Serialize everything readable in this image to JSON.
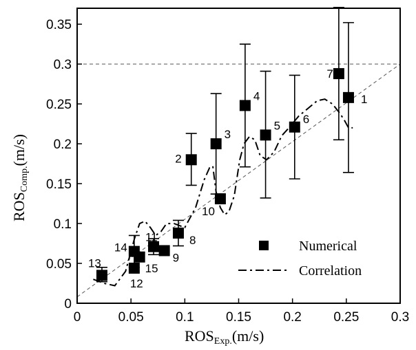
{
  "chart_data": {
    "type": "scatter",
    "xlabel": "ROS",
    "xlabel_sub": "Exp.",
    "xlabel_unit": "(m/s)",
    "ylabel": "ROS",
    "ylabel_sub": "Comp.",
    "ylabel_unit": "(m/s)",
    "xlim": [
      0,
      0.3
    ],
    "ylim": [
      0,
      0.37
    ],
    "xticks": [
      "0",
      "0.05",
      "0.1",
      "0.15",
      "0.2",
      "0.25",
      "0.3"
    ],
    "xtick_values": [
      0,
      0.05,
      0.1,
      0.15,
      0.2,
      0.25,
      0.3
    ],
    "yticks": [
      "0",
      "0.05",
      "0.1",
      "0.15",
      "0.2",
      "0.25",
      "0.3",
      "0.35"
    ],
    "ytick_values": [
      0,
      0.05,
      0.1,
      0.15,
      0.2,
      0.25,
      0.3,
      0.35
    ],
    "grid": false,
    "legend_position": "bottom-right",
    "series": [
      {
        "name": "Numerical",
        "marker": "square",
        "points": [
          {
            "label": "1",
            "x": 0.252,
            "y": 0.258,
            "err_low": 0.164,
            "err_high": 0.352
          },
          {
            "label": "2",
            "x": 0.106,
            "y": 0.18,
            "err_low": 0.148,
            "err_high": 0.213
          },
          {
            "label": "3",
            "x": 0.129,
            "y": 0.2,
            "err_low": 0.137,
            "err_high": 0.263
          },
          {
            "label": "4",
            "x": 0.156,
            "y": 0.248,
            "err_low": 0.171,
            "err_high": 0.325
          },
          {
            "label": "5",
            "x": 0.175,
            "y": 0.211,
            "err_low": 0.132,
            "err_high": 0.291
          },
          {
            "label": "6",
            "x": 0.202,
            "y": 0.221,
            "err_low": 0.156,
            "err_high": 0.286
          },
          {
            "label": "7",
            "x": 0.243,
            "y": 0.288,
            "err_low": 0.205,
            "err_high": 0.371
          },
          {
            "label": "8",
            "x": 0.094,
            "y": 0.088,
            "err_low": 0.072,
            "err_high": 0.104
          },
          {
            "label": "9",
            "x": 0.081,
            "y": 0.066,
            "err_low": null,
            "err_high": null
          },
          {
            "label": "10",
            "x": 0.133,
            "y": 0.131,
            "err_low": null,
            "err_high": null
          },
          {
            "label": "11",
            "x": 0.071,
            "y": 0.071,
            "err_low": 0.061,
            "err_high": 0.081
          },
          {
            "label": "12",
            "x": 0.053,
            "y": 0.044,
            "err_low": null,
            "err_high": null
          },
          {
            "label": "13",
            "x": 0.023,
            "y": 0.035,
            "err_low": 0.027,
            "err_high": 0.045
          },
          {
            "label": "14",
            "x": 0.053,
            "y": 0.065,
            "err_low": 0.045,
            "err_high": 0.085
          },
          {
            "label": "15",
            "x": 0.058,
            "y": 0.058,
            "err_low": null,
            "err_high": null
          }
        ]
      },
      {
        "name": "Correlation",
        "line_style": "dash-dot",
        "x": [
          0.015,
          0.025,
          0.035,
          0.045,
          0.053,
          0.058,
          0.063,
          0.068,
          0.073,
          0.078,
          0.083,
          0.09,
          0.1,
          0.11,
          0.118,
          0.123,
          0.126,
          0.129,
          0.133,
          0.137,
          0.141,
          0.146,
          0.151,
          0.155,
          0.16,
          0.165,
          0.17,
          0.176,
          0.183,
          0.19,
          0.198,
          0.206,
          0.215,
          0.223,
          0.23,
          0.237,
          0.243,
          0.248,
          0.252,
          0.256
        ],
        "y": [
          0.03,
          0.025,
          0.022,
          0.04,
          0.08,
          0.1,
          0.103,
          0.095,
          0.085,
          0.09,
          0.1,
          0.1,
          0.095,
          0.12,
          0.155,
          0.17,
          0.172,
          0.14,
          0.12,
          0.111,
          0.115,
          0.135,
          0.18,
          0.2,
          0.209,
          0.205,
          0.185,
          0.18,
          0.19,
          0.21,
          0.222,
          0.235,
          0.245,
          0.254,
          0.256,
          0.25,
          0.24,
          0.23,
          0.22,
          0.22
        ]
      }
    ],
    "reference_lines": [
      {
        "style": "dashed",
        "x": [
          0,
          0.3
        ],
        "y": [
          0.008,
          0.3
        ]
      },
      {
        "style": "dashed",
        "x": [
          0,
          0.3
        ],
        "y": [
          0.3,
          0.3
        ]
      }
    ]
  }
}
